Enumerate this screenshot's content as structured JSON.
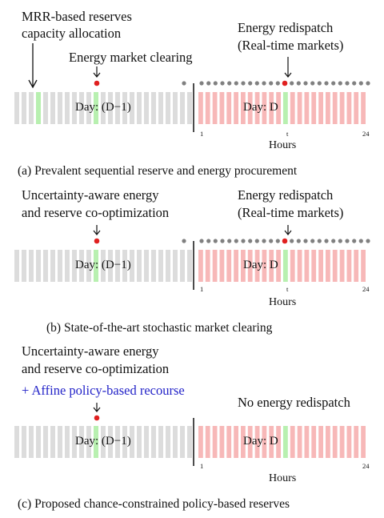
{
  "colors": {
    "day_ahead_bar": "#dcdcdc",
    "real_time_bar": "#f7b8b8",
    "highlight_bar": "#b8f0b0",
    "clearing_dot": "#e02020",
    "hour_dot": "#808080",
    "policy_text": "#2323c8"
  },
  "panels": [
    {
      "left_labels": [
        "MRR-based reserves",
        "capacity allocation"
      ],
      "market_label": "Energy market clearing",
      "right_labels": [
        "Energy redispatch",
        "(Real-time markets)"
      ],
      "day_prev_label": "Day: (D−1)",
      "day_label": "Day: D",
      "tick_labels": [
        "1",
        "t",
        "24"
      ],
      "axis_label": "Hours",
      "caption": "(a) Prevalent sequential reserve and energy procurement",
      "hour_dots": true
    },
    {
      "left_labels": [
        "Uncertainty-aware energy",
        "and reserve co-optimization"
      ],
      "right_labels": [
        "Energy redispatch",
        "(Real-time markets)"
      ],
      "day_prev_label": "Day: (D−1)",
      "day_label": "Day: D",
      "tick_labels": [
        "1",
        "t",
        "24"
      ],
      "axis_label": "Hours",
      "caption": "(b) State-of-the-art stochastic market clearing",
      "hour_dots": true
    },
    {
      "left_labels": [
        "Uncertainty-aware energy",
        "and reserve co-optimization"
      ],
      "policy_label": "+ Affine policy-based recourse",
      "right_labels": [
        "No energy redispatch"
      ],
      "day_prev_label": "Day: (D−1)",
      "day_label": "Day: D",
      "tick_labels": [
        "1",
        "24"
      ],
      "axis_label": "Hours",
      "caption": "(c) Proposed chance-constrained policy-based reserves",
      "hour_dots": false
    }
  ]
}
